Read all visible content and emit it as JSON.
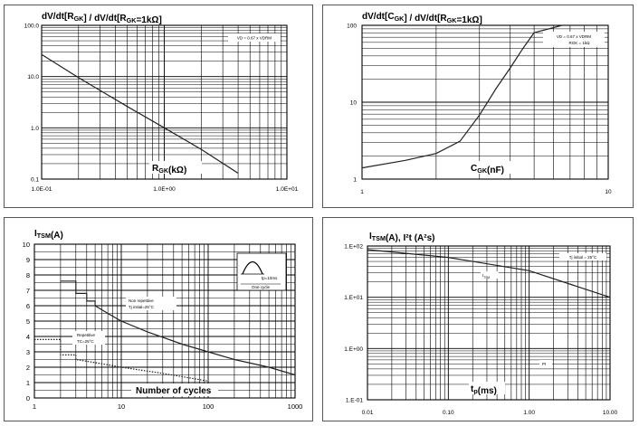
{
  "chart_data": [
    {
      "type": "line",
      "title": "dV/dt[RGK] / dV/dt[RGK=1kΩ]",
      "xlabel": "RGK(kΩ)",
      "ylabel": "",
      "xscale": "log",
      "yscale": "log",
      "xlim": [
        0.1,
        10
      ],
      "ylim": [
        0.1,
        100
      ],
      "x_ticks": [
        "1.0E-01",
        "1.0E+00",
        "1.0E+01"
      ],
      "y_ticks": [
        "0.1",
        "1.0",
        "10.0",
        "100.0"
      ],
      "annotation": "VD = 0.67 x VDRM",
      "grid": true,
      "series": [
        {
          "x": [
            0.1,
            0.2,
            0.5,
            1,
            2,
            4
          ],
          "y": [
            27,
            9.5,
            2.6,
            1.0,
            0.38,
            0.13
          ]
        }
      ]
    },
    {
      "type": "line",
      "title": "dV/dt[CGK] / dV/dt[RGK=1kΩ]",
      "xlabel": "CGK(nF)",
      "ylabel": "",
      "xscale": "log",
      "yscale": "log",
      "xlim": [
        1,
        10
      ],
      "ylim": [
        1,
        100
      ],
      "x_ticks": [
        "1",
        "10"
      ],
      "y_ticks": [
        "1",
        "10",
        "100"
      ],
      "annotations": [
        "VD = 0.67 x VDRM",
        "RGK = 1kΩ"
      ],
      "grid": true,
      "series": [
        {
          "x": [
            1,
            1.5,
            2,
            2.5,
            3,
            3.5,
            4,
            4.5,
            5,
            6.5
          ],
          "y": [
            1.4,
            1.75,
            2.15,
            3.1,
            6.8,
            15,
            28,
            50,
            80,
            100
          ]
        }
      ]
    },
    {
      "type": "line",
      "title": "ITSM(A)",
      "xlabel": "Number of cycles",
      "ylabel": "",
      "xscale": "log",
      "yscale": "linear",
      "xlim": [
        1,
        1000
      ],
      "ylim": [
        0,
        10
      ],
      "x_ticks": [
        "1",
        "10",
        "100",
        "1000"
      ],
      "y_ticks": [
        "0",
        "1",
        "2",
        "3",
        "4",
        "5",
        "6",
        "7",
        "8",
        "9",
        "10"
      ],
      "inset": {
        "label": "tp=10ms",
        "caption": "One cycle"
      },
      "grid": true,
      "series": [
        {
          "name": "Non repetitive Tj initial=25°C",
          "style": "solid",
          "x": [
            2,
            3,
            3,
            4,
            4,
            5,
            5,
            7,
            10,
            20,
            50,
            100,
            200,
            500,
            1000
          ],
          "y": [
            7.6,
            7.6,
            6.8,
            6.8,
            6.3,
            6.3,
            6.0,
            5.5,
            5.0,
            4.3,
            3.5,
            3.0,
            2.5,
            2.0,
            1.5
          ]
        },
        {
          "name": "Repetitive TC=25°C",
          "style": "dotted",
          "x": [
            1,
            2,
            2,
            3,
            3,
            5,
            10,
            30,
            100
          ],
          "y": [
            3.8,
            3.8,
            2.8,
            2.8,
            2.5,
            2.3,
            2.0,
            1.6,
            1.1
          ]
        }
      ]
    },
    {
      "type": "line",
      "title": "ITSM(A), I²t (A²s)",
      "xlabel": "tp(ms)",
      "ylabel": "",
      "xscale": "log",
      "yscale": "log",
      "xlim": [
        0.01,
        10
      ],
      "ylim": [
        0.1,
        100
      ],
      "x_ticks": [
        "0.01",
        "0.10",
        "1.00",
        "10.00"
      ],
      "y_ticks": [
        "1.E-01",
        "1.E+00",
        "1.E+01",
        "1.E+02"
      ],
      "annotation": "Tj initial = 25°C",
      "grid": true,
      "series": [
        {
          "name": "ITSM",
          "x": [
            0.01,
            0.1,
            1,
            10
          ],
          "y": [
            85,
            60,
            33,
            10
          ]
        },
        {
          "name": "PI",
          "x": [],
          "y": []
        }
      ]
    }
  ]
}
